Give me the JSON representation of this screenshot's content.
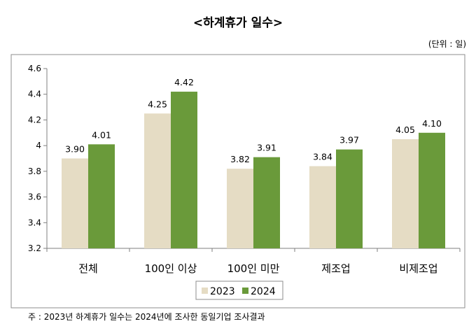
{
  "title": "<하계휴가 일수>",
  "unit_note": "(단위 : 일)",
  "footnote": "주 : 2023년 하계휴가 일수는 2024년에 조사한 동일기업 조사결과",
  "chart_data": {
    "type": "bar",
    "categories": [
      "전체",
      "100인 이상",
      "100인 미만",
      "제조업",
      "비제조업"
    ],
    "series": [
      {
        "name": "2023",
        "color": "#e5dcc4",
        "values": [
          3.9,
          4.25,
          3.82,
          3.84,
          4.05
        ],
        "labels": [
          "3.90",
          "4.25",
          "3.82",
          "3.84",
          "4.05"
        ]
      },
      {
        "name": "2024",
        "color": "#6a9a3a",
        "values": [
          4.01,
          4.42,
          3.91,
          3.97,
          4.1
        ],
        "labels": [
          "4.01",
          "4.42",
          "3.91",
          "3.97",
          "4.10"
        ]
      }
    ],
    "ylim": [
      3.2,
      4.6
    ],
    "yticks": [
      3.2,
      3.4,
      3.6,
      3.8,
      4.0,
      4.2,
      4.4,
      4.6
    ],
    "ytick_labels": [
      "3.2",
      "3.4",
      "3.6",
      "3.8",
      "4",
      "4.2",
      "4.4",
      "4.6"
    ],
    "grid": false,
    "legend_position": "bottom-center"
  }
}
